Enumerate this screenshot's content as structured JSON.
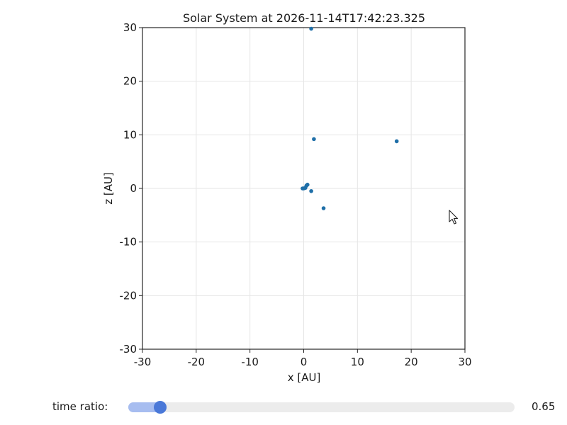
{
  "chart_data": {
    "type": "scatter",
    "title": "Solar System at 2026-11-14T17:42:23.325",
    "xlabel": "x [AU]",
    "ylabel": "z [AU]",
    "xlim": [
      -30,
      30
    ],
    "ylim": [
      -30,
      30
    ],
    "xticks": [
      -30,
      -20,
      -10,
      0,
      10,
      20,
      30
    ],
    "yticks": [
      -30,
      -20,
      -10,
      0,
      10,
      20,
      30
    ],
    "grid": true,
    "series": [
      {
        "color": "#1f6fa8",
        "points": [
          {
            "x": 0.0,
            "y": 0.0
          },
          {
            "x": 0.3,
            "y": 0.1
          },
          {
            "x": -0.2,
            "y": 0.0
          },
          {
            "x": 0.5,
            "y": 0.5
          },
          {
            "x": 0.7,
            "y": 0.7
          },
          {
            "x": 1.4,
            "y": -0.5
          },
          {
            "x": 1.9,
            "y": 9.2
          },
          {
            "x": 3.7,
            "y": -3.7
          },
          {
            "x": 17.3,
            "y": 8.8
          },
          {
            "x": 1.4,
            "y": 29.8
          }
        ]
      }
    ]
  },
  "slider": {
    "label": "time ratio:",
    "value": 0.65,
    "value_text": "0.65",
    "fraction": 0.068
  },
  "colors": {
    "marker": "#1f6fa8",
    "grid": "#e6e6e6",
    "slider_fill": "#a7bdf0",
    "slider_thumb": "#4a78d8",
    "slider_track": "#ececec"
  },
  "icons": {
    "cursor": "mouse-pointer-icon"
  }
}
